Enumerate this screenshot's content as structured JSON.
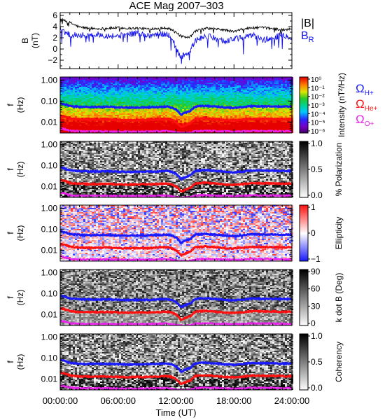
{
  "title": "ACE Mag 2007–303",
  "colors": {
    "B_total": "#000000",
    "B_R": "#1010ee",
    "omega_H": "#1a1aff",
    "omega_He": "#ff1010",
    "omega_O": "#ee20ee",
    "background": "#ffffff"
  },
  "chart_data": [
    {
      "type": "line",
      "ylabel_top": "B",
      "ylabel_bottom": "(nT)",
      "ylim": [
        -3.5,
        6.5
      ],
      "yticks": [
        "6",
        "4",
        "2",
        "0",
        "−2"
      ],
      "ytick_values": [
        6,
        4,
        2,
        0,
        -2
      ],
      "x_range_hours": [
        0,
        24
      ],
      "legend": [
        {
          "name": "|B|",
          "color": "#000000"
        },
        {
          "name": "B",
          "sub": "R",
          "color": "#1010ee"
        }
      ],
      "series": [
        {
          "name": "|B|",
          "x_hours": [
            0,
            0.5,
            1,
            2,
            3,
            4,
            5,
            6,
            7,
            8,
            9,
            10,
            11,
            11.5,
            12,
            12.5,
            13,
            13.5,
            14,
            15,
            16,
            17,
            18,
            19,
            20,
            21,
            22,
            23,
            24
          ],
          "values": [
            5.4,
            5.0,
            4.7,
            3.9,
            3.7,
            3.6,
            3.7,
            3.8,
            3.7,
            3.7,
            3.6,
            3.7,
            3.8,
            3.5,
            2.9,
            2.3,
            2.0,
            2.2,
            3.2,
            3.7,
            3.6,
            3.4,
            3.1,
            3.6,
            3.8,
            3.8,
            3.7,
            3.4,
            3.6
          ]
        },
        {
          "name": "B_R",
          "x_hours": [
            0,
            0.5,
            1,
            2,
            3,
            4,
            5,
            6,
            7,
            8,
            9,
            10,
            11,
            11.5,
            12,
            12.5,
            13,
            13.5,
            14,
            15,
            16,
            17,
            18,
            19,
            20,
            21,
            22,
            23,
            24
          ],
          "values": [
            3.6,
            3.0,
            2.6,
            2.5,
            2.4,
            2.6,
            2.4,
            2.3,
            2.6,
            2.9,
            2.4,
            2.6,
            2.7,
            2.3,
            0.2,
            -1.4,
            -1.1,
            -0.2,
            1.5,
            2.3,
            2.0,
            1.4,
            1.8,
            2.0,
            2.5,
            1.6,
            1.9,
            2.6,
            2.0
          ]
        }
      ]
    },
    {
      "type": "heatmap",
      "ylabel_top": "f",
      "ylabel_bottom": "(Hz)",
      "y_scale": "log",
      "ylim": [
        0.003,
        1.4
      ],
      "yticks": [
        "1.00",
        "0.10",
        "0.01"
      ],
      "ytick_values": [
        1.0,
        0.1,
        0.01
      ],
      "colorbar_label": "Intensity (nT²/Hz)",
      "colorbar_ticks": [
        "10⁰",
        "10⁻¹",
        "10⁻²",
        "10⁻³",
        "10⁻⁴",
        "10⁻⁵",
        "10⁻⁶"
      ],
      "colorbar_type": "rainbow",
      "legend": [
        {
          "symbol": "Ω",
          "sub": "H+",
          "color": "#1a1aff"
        },
        {
          "symbol": "Ω",
          "sub": "He+",
          "color": "#ff1010"
        },
        {
          "symbol": "Ω",
          "sub": "O+",
          "color": "#ee20ee"
        }
      ]
    },
    {
      "type": "heatmap",
      "ylabel_top": "f",
      "ylabel_bottom": "(Hz)",
      "y_scale": "log",
      "ylim": [
        0.003,
        1.4
      ],
      "yticks": [
        "1.00",
        "0.10",
        "0.01"
      ],
      "ytick_values": [
        1.0,
        0.1,
        0.01
      ],
      "colorbar_label": "% Polarization",
      "colorbar_ticks": [
        "1.0",
        "0.5",
        "0.0"
      ],
      "colorbar_type": "gray"
    },
    {
      "type": "heatmap",
      "ylabel_top": "f",
      "ylabel_bottom": "(Hz)",
      "y_scale": "log",
      "ylim": [
        0.003,
        1.4
      ],
      "yticks": [
        "1.00",
        "0.10",
        "0.01"
      ],
      "ytick_values": [
        1.0,
        0.1,
        0.01
      ],
      "colorbar_label": "Ellipticity",
      "colorbar_ticks": [
        "1",
        "0",
        "−1"
      ],
      "colorbar_type": "redblue"
    },
    {
      "type": "heatmap",
      "ylabel_top": "f",
      "ylabel_bottom": "(Hz)",
      "y_scale": "log",
      "ylim": [
        0.003,
        1.4
      ],
      "yticks": [
        "1.00",
        "0.10",
        "0.01"
      ],
      "ytick_values": [
        1.0,
        0.1,
        0.01
      ],
      "colorbar_label": "k dot B (Deg)",
      "colorbar_ticks": [
        "90",
        "60",
        "30",
        "0"
      ],
      "colorbar_type": "gray"
    },
    {
      "type": "heatmap",
      "ylabel_top": "f",
      "ylabel_bottom": "(Hz)",
      "y_scale": "log",
      "ylim": [
        0.003,
        1.4
      ],
      "yticks": [
        "1.00",
        "0.10",
        "0.01"
      ],
      "ytick_values": [
        1.0,
        0.1,
        0.01
      ],
      "colorbar_label": "Coherency",
      "colorbar_ticks": [
        "1.0",
        "0.5",
        "0.0"
      ],
      "colorbar_type": "gray"
    }
  ],
  "gyrofrequency_lines": [
    {
      "name": "ΩH+",
      "color": "#1a1aff",
      "x_hours": [
        0,
        0.5,
        1,
        2,
        3,
        4,
        5,
        6,
        7,
        8,
        9,
        10,
        11,
        11.5,
        12,
        12.5,
        13,
        13.5,
        14,
        15,
        16,
        17,
        18,
        19,
        20,
        21,
        22,
        23,
        24
      ],
      "values_hz": [
        0.08,
        0.07,
        0.058,
        0.053,
        0.052,
        0.052,
        0.053,
        0.05,
        0.049,
        0.05,
        0.05,
        0.052,
        0.055,
        0.05,
        0.04,
        0.022,
        0.028,
        0.034,
        0.055,
        0.06,
        0.055,
        0.05,
        0.047,
        0.052,
        0.058,
        0.056,
        0.056,
        0.054,
        0.055
      ]
    },
    {
      "name": "ΩHe+",
      "color": "#ff1010",
      "x_hours": [
        0,
        0.5,
        1,
        2,
        3,
        4,
        5,
        6,
        7,
        8,
        9,
        10,
        11,
        11.5,
        12,
        12.5,
        13,
        13.5,
        14,
        15,
        16,
        17,
        18,
        19,
        20,
        21,
        22,
        23,
        24
      ],
      "values_hz": [
        0.02,
        0.018,
        0.0145,
        0.0132,
        0.013,
        0.013,
        0.0132,
        0.0125,
        0.0122,
        0.0125,
        0.0125,
        0.013,
        0.0138,
        0.0125,
        0.01,
        0.0055,
        0.007,
        0.0085,
        0.0138,
        0.015,
        0.0138,
        0.0125,
        0.0118,
        0.013,
        0.0145,
        0.014,
        0.014,
        0.0135,
        0.0138
      ]
    },
    {
      "name": "ΩO+",
      "color": "#ee20ee",
      "x_hours": [
        0,
        0.5,
        1,
        2,
        3,
        4,
        5,
        6,
        7,
        8,
        9,
        10,
        11,
        11.5,
        12,
        12.5,
        13,
        13.5,
        14,
        15,
        16,
        17,
        18,
        19,
        20,
        21,
        22,
        23,
        24
      ],
      "values_hz": [
        0.005,
        0.0045,
        0.0038,
        0.0036,
        0.0036,
        0.0036,
        0.0036,
        0.0035,
        0.0035,
        0.0035,
        0.0035,
        0.0036,
        0.0037,
        0.0035,
        0.0032,
        0.003,
        0.003,
        0.0031,
        0.0037,
        0.0038,
        0.0037,
        0.0036,
        0.0035,
        0.0036,
        0.0038,
        0.0037,
        0.0037,
        0.0036,
        0.0037
      ]
    }
  ],
  "x_axis": {
    "label": "Time (UT)",
    "range_hours": [
      0,
      24
    ],
    "tick_values": [
      0,
      6,
      12,
      18,
      24
    ],
    "tick_labels": [
      "00:00:00",
      "06:00:00",
      "12:00:00",
      "18:00:00",
      "24:00:00"
    ]
  }
}
